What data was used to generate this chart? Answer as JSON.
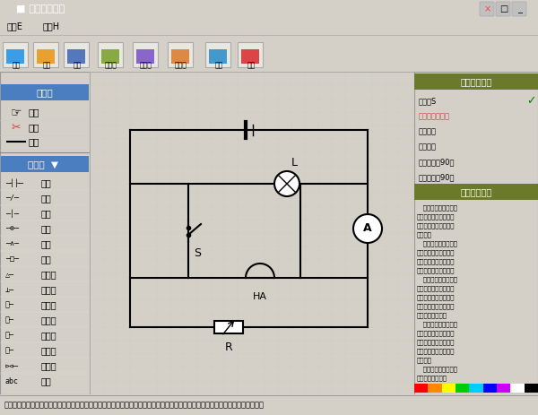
{
  "title": "电路图手绘板",
  "title_bar_color": "#1a5fb4",
  "title_bar_text_color": "#ffffff",
  "bg_color": "#d4d0c8",
  "canvas_bg": "#eeeee4",
  "grid_color": "#ccccbb",
  "circuit_line_color": "#000000",
  "right_panel_bg": "#e0e0d0",
  "right_title1_bg": "#6b7a2a",
  "right_title2_bg": "#6b7a2a",
  "left_title_bg": "#4a7ec0",
  "status_bg": "#f0f0e0",
  "color_bar": [
    "#ff0000",
    "#ff8800",
    "#ffff00",
    "#00cc00",
    "#00ccff",
    "#0000ff",
    "#cc00ff",
    "#ffffff",
    "#000000"
  ]
}
